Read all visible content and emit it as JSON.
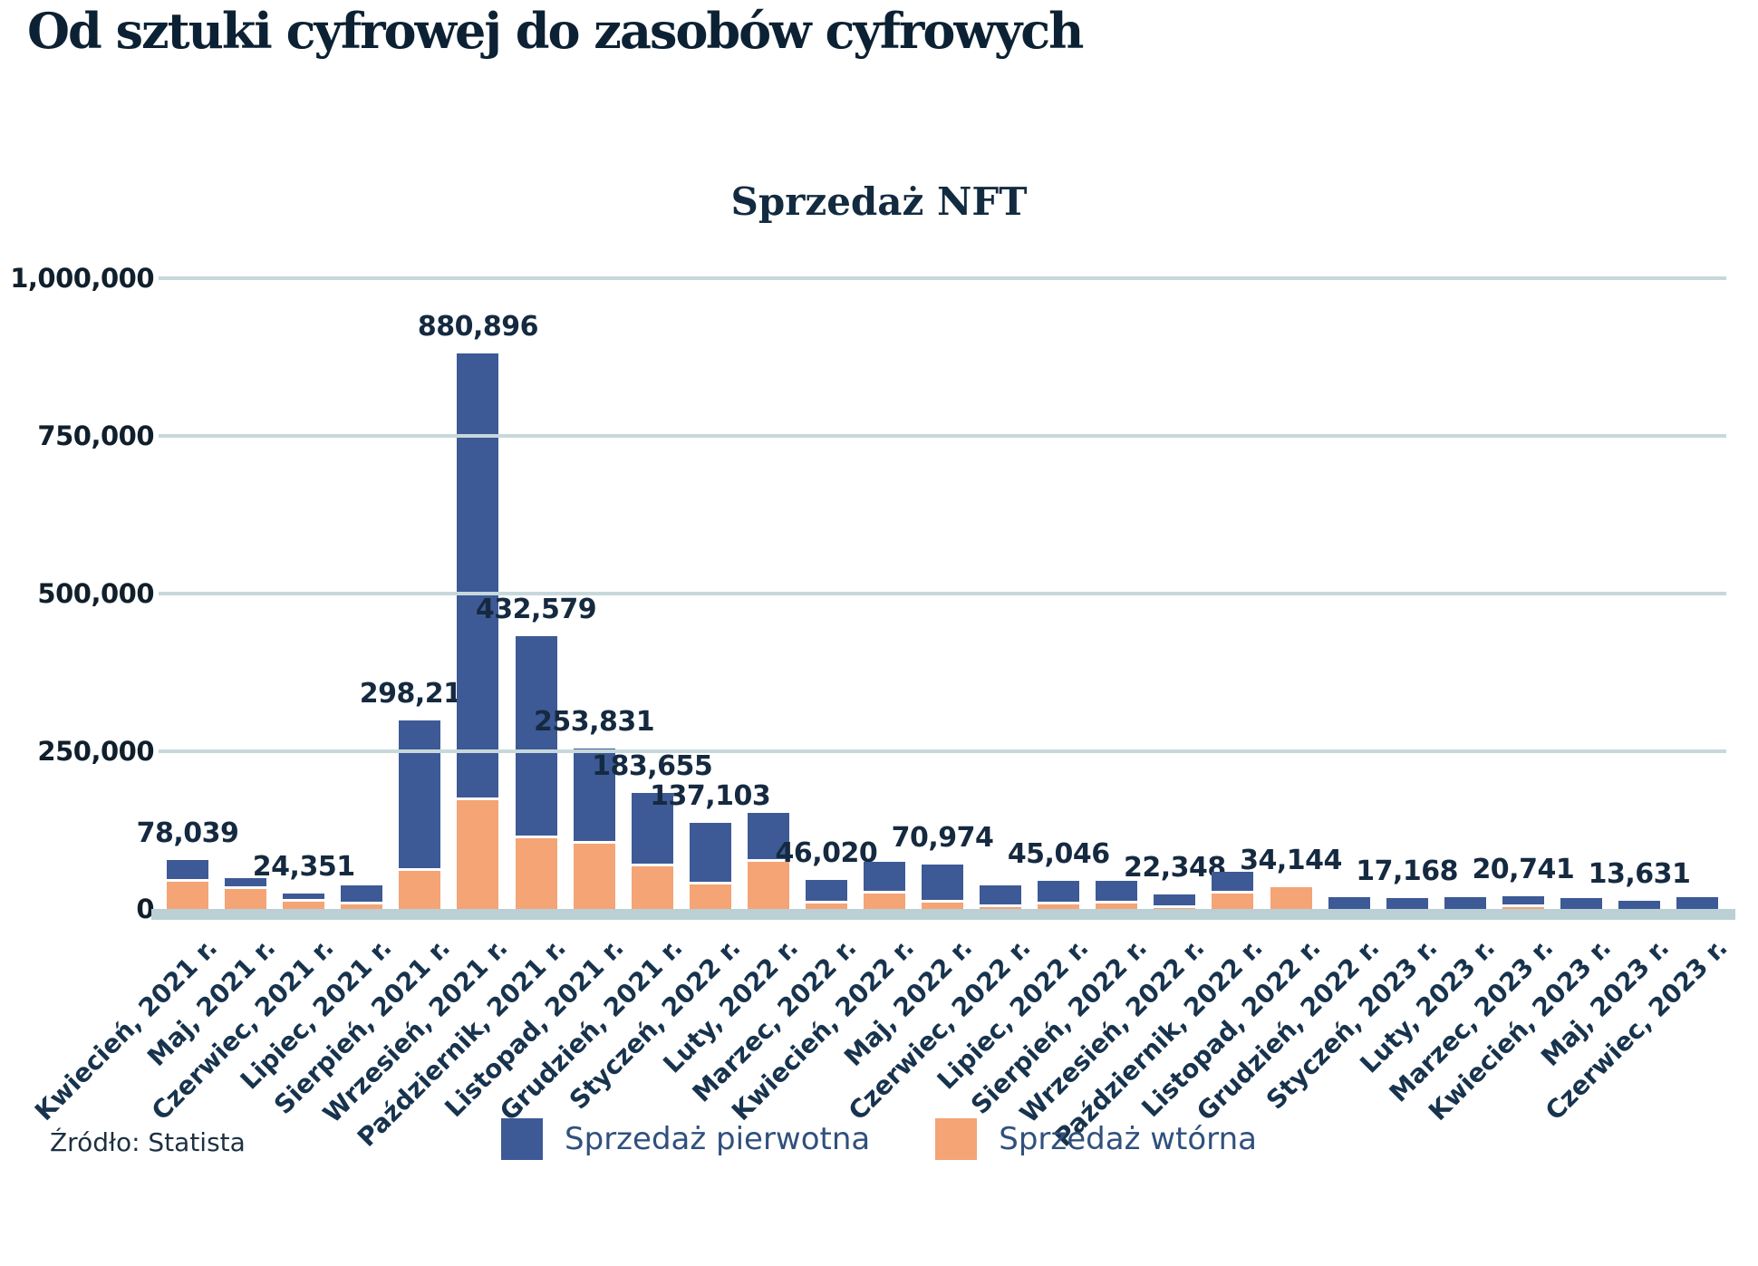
{
  "title": "Od sztuki cyfrowej do zasobów cyfrowych",
  "source": "Źródło: Statista",
  "colors": {
    "primary_blue": "#3d5a96",
    "secondary_orange": "#f4a475",
    "title_text": "#0c2234",
    "label_text": "#152a40",
    "legend_text": "#30507d",
    "gridline": "#c7d8db",
    "axis_band": "#bad0d5",
    "background": "#ffffff"
  },
  "chart_data": {
    "type": "bar",
    "stacked": true,
    "title": "Sprzedaż NFT",
    "xlabel": "",
    "ylabel": "",
    "ylim": [
      0,
      1000000
    ],
    "grid": true,
    "legend_position": "bottom",
    "yticks": [
      {
        "value": 1000000,
        "label": "1,000,000"
      },
      {
        "value": 750000,
        "label": "750,000"
      },
      {
        "value": 500000,
        "label": "500,000"
      },
      {
        "value": 250000,
        "label": "250,000"
      },
      {
        "value": 0,
        "label": "0"
      }
    ],
    "categories": [
      "Kwiecień, 2021 r.",
      "Maj, 2021 r.",
      "Czerwiec, 2021 r.",
      "Lipiec, 2021 r.",
      "Sierpień, 2021 r.",
      "Wrzesień, 2021 r.",
      "Październik, 2021 r.",
      "Listopad, 2021 r.",
      "Grudzień, 2021 r.",
      "Styczeń, 2022 r.",
      "Luty, 2022 r.",
      "Marzec, 2022 r.",
      "Kwiecień, 2022 r.",
      "Maj, 2022 r.",
      "Czerwiec, 2022 r.",
      "Lipiec, 2022 r.",
      "Sierpień, 2022 r.",
      "Wrzesień, 2022 r.",
      "Październik, 2022 r.",
      "Listopad, 2022 r.",
      "Grudzień, 2022 r.",
      "Styczeń, 2023 r.",
      "Luty, 2023 r.",
      "Marzec, 2023 r.",
      "Kwiecień, 2023 r.",
      "Maj, 2023 r.",
      "Czerwiec, 2023 r."
    ],
    "series": [
      {
        "name": "Sprzedaż pierwotna",
        "color": "#3d5a96",
        "stack_position": "top",
        "values": [
          35539,
          18000,
          12851,
          30000,
          238210,
          708896,
          320579,
          150831,
          116655,
          98103,
          77000,
          37020,
          51000,
          60474,
          34500,
          38046,
          37000,
          20848,
          34500,
          0,
          19000,
          17168,
          18500,
          17741,
          17000,
          13631,
          19000
        ]
      },
      {
        "name": "Sprzedaż wtórna",
        "color": "#f4a475",
        "stack_position": "bottom",
        "values": [
          42500,
          31500,
          11500,
          7000,
          60000,
          172000,
          112000,
          103000,
          67000,
          39000,
          75000,
          9000,
          24000,
          10500,
          2500,
          7000,
          8000,
          1500,
          24000,
          34144,
          0,
          0,
          0,
          3000,
          0,
          0,
          0
        ]
      }
    ],
    "bar_total_labels": [
      "78,039",
      null,
      "24,351",
      null,
      "298,210",
      "880,896",
      "432,579",
      "253,831",
      "183,655",
      "137,103",
      null,
      "46,020",
      null,
      "70,974",
      null,
      "45,046",
      null,
      "22,348",
      null,
      "34,144",
      null,
      "17,168",
      null,
      "20,741",
      null,
      "13,631",
      null
    ]
  }
}
